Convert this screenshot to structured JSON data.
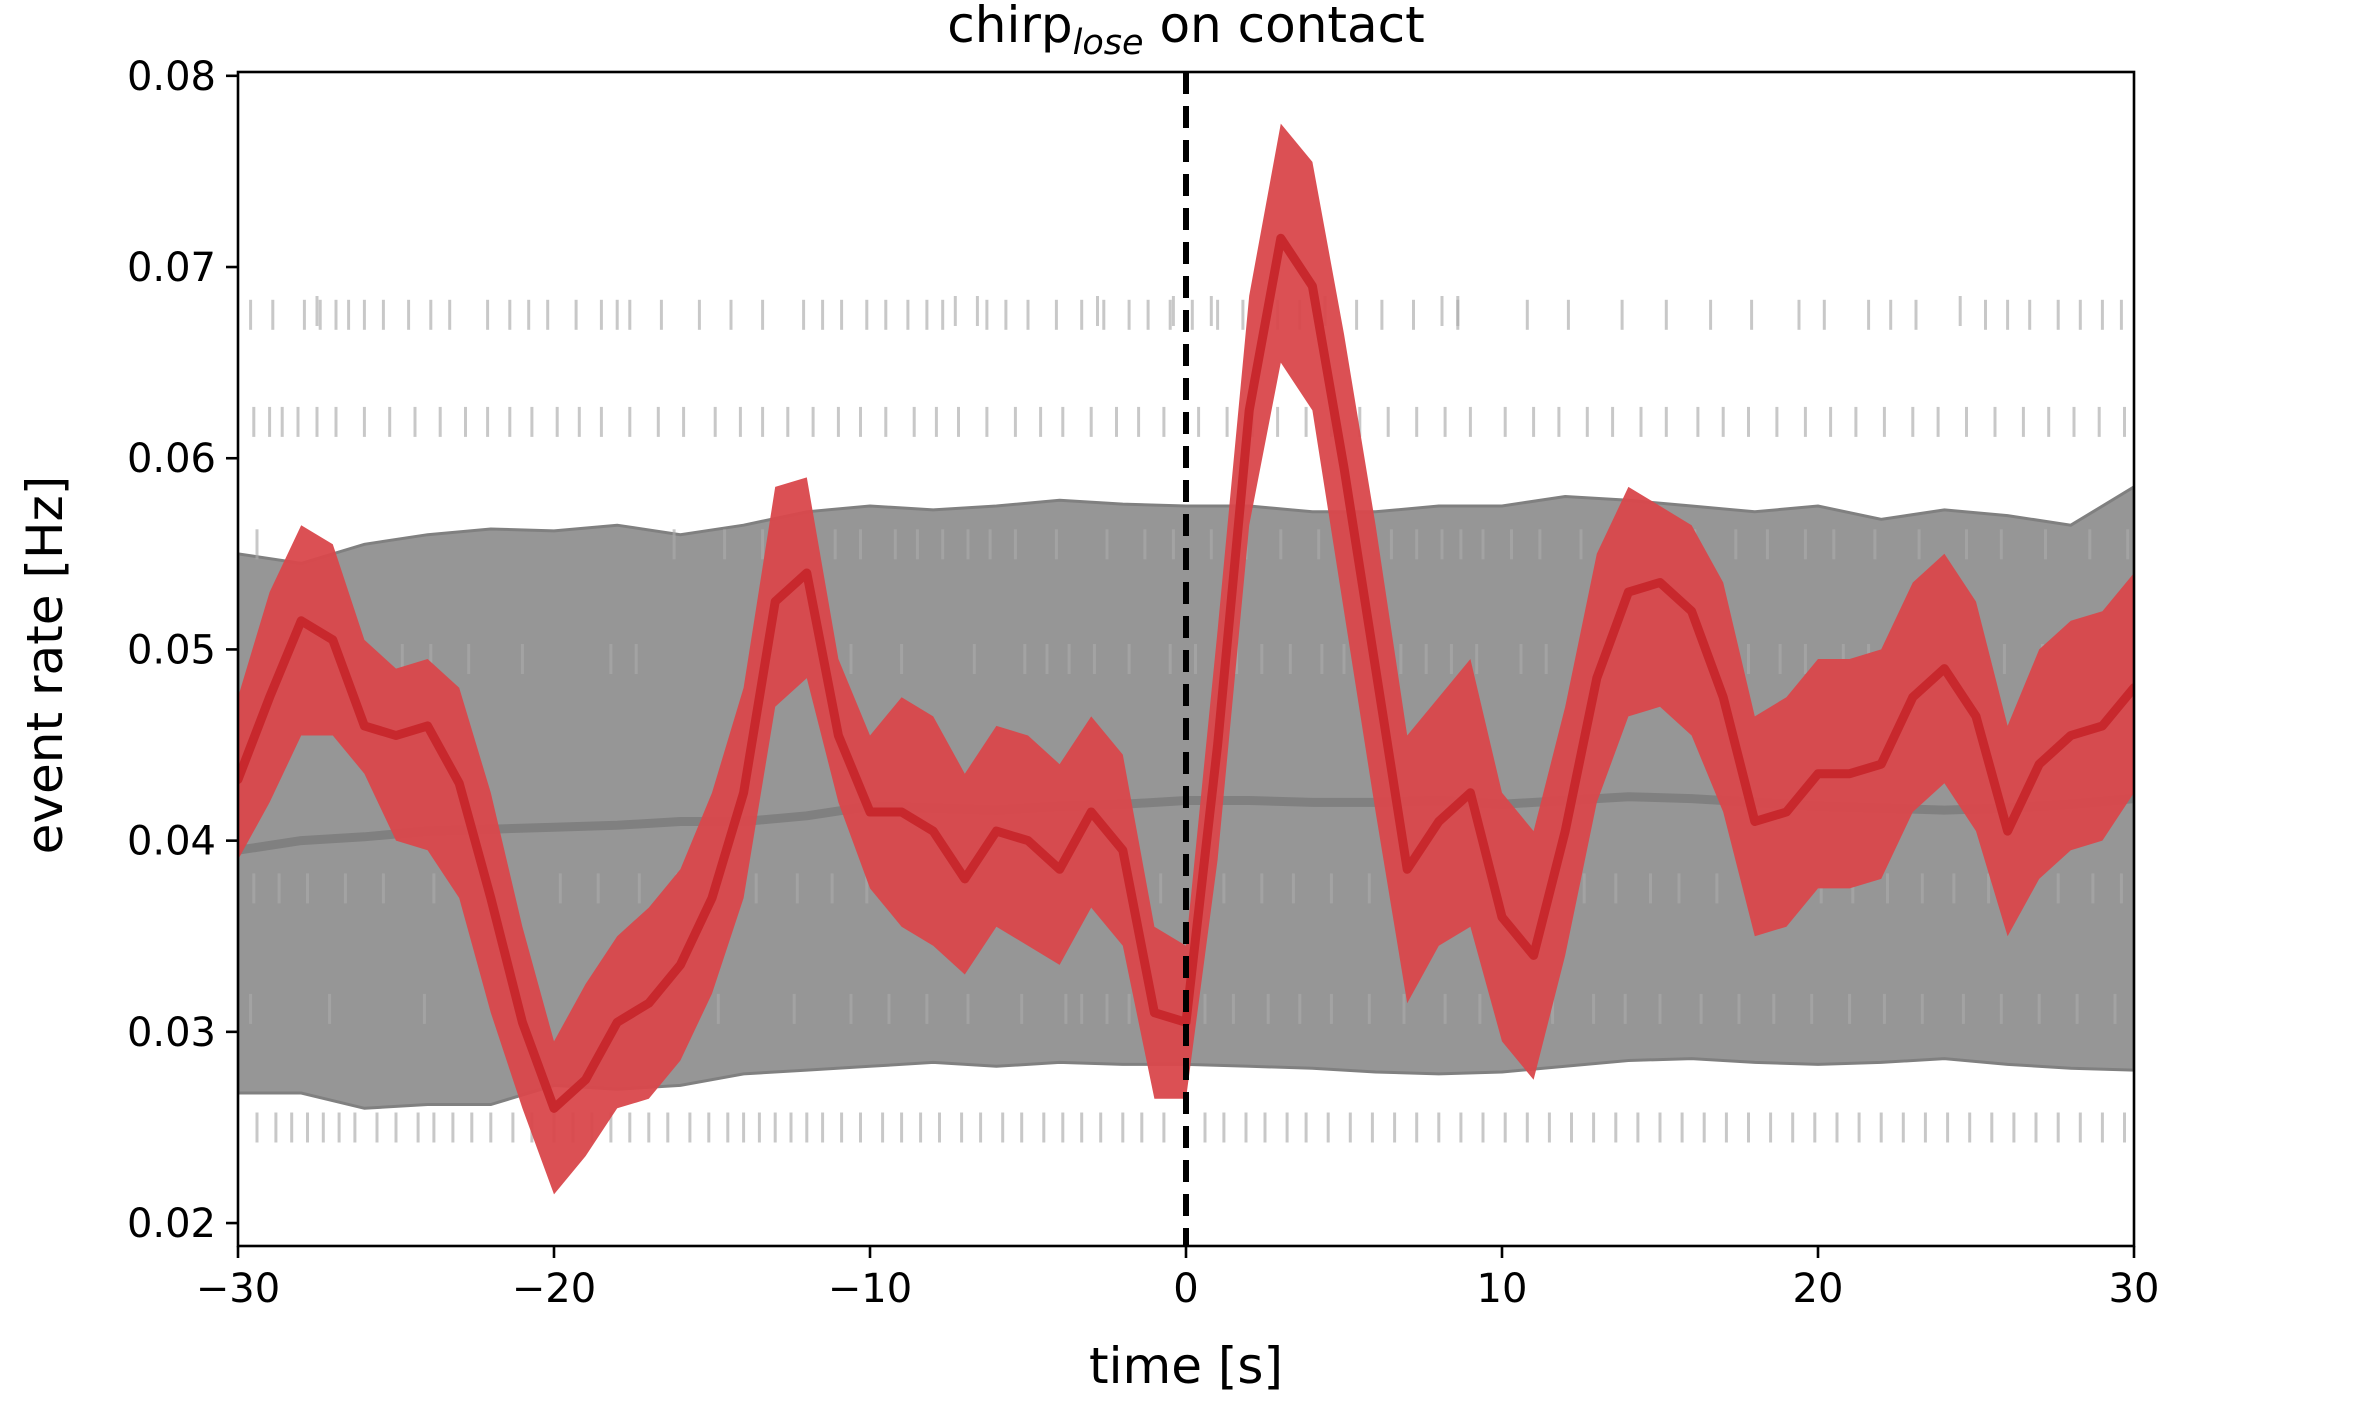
{
  "chart_data": {
    "type": "line",
    "title": {
      "main": "chirp",
      "subscript": "lose",
      "suffix": " on contact"
    },
    "xlabel": "time [s]",
    "ylabel": "event rate [Hz]",
    "xlim": [
      -30,
      30
    ],
    "ylim": [
      0.0188,
      0.0802
    ],
    "xticks": [
      -30,
      -20,
      -10,
      0,
      10,
      20,
      30
    ],
    "xtick_labels": [
      "−30",
      "−20",
      "−10",
      "0",
      "10",
      "20",
      "30"
    ],
    "yticks": [
      0.02,
      0.03,
      0.04,
      0.05,
      0.06,
      0.07,
      0.08
    ],
    "ytick_labels": [
      "0.02",
      "0.03",
      "0.04",
      "0.05",
      "0.06",
      "0.07",
      "0.08"
    ],
    "grid": false,
    "legend": "none",
    "colors": {
      "observed": "#c8282d",
      "observed_band": "#d9474b",
      "null": "#808080",
      "null_band": "#969696",
      "events": "#aaaaaa",
      "vline": "#000000"
    },
    "vline_x": 0,
    "series": [
      {
        "role": "observed",
        "x": [
          -30,
          -29,
          -28,
          -27,
          -26,
          -25,
          -24,
          -23,
          -22,
          -21,
          -20,
          -19,
          -18,
          -17,
          -16,
          -15,
          -14,
          -13,
          -12,
          -11,
          -10,
          -9,
          -8,
          -7,
          -6,
          -5,
          -4,
          -3,
          -2,
          -1,
          0,
          1,
          2,
          3,
          4,
          5,
          6,
          7,
          8,
          9,
          10,
          11,
          12,
          13,
          14,
          15,
          16,
          17,
          18,
          19,
          20,
          21,
          22,
          23,
          24,
          25,
          26,
          27,
          28,
          29,
          30
        ],
        "y": [
          0.0432,
          0.0475,
          0.0515,
          0.0505,
          0.046,
          0.0455,
          0.046,
          0.043,
          0.037,
          0.0305,
          0.026,
          0.0275,
          0.0305,
          0.0315,
          0.0335,
          0.037,
          0.0425,
          0.0525,
          0.054,
          0.0455,
          0.0415,
          0.0415,
          0.0405,
          0.038,
          0.0405,
          0.04,
          0.0385,
          0.0415,
          0.0395,
          0.031,
          0.0305,
          0.045,
          0.0625,
          0.0715,
          0.069,
          0.0595,
          0.049,
          0.0385,
          0.041,
          0.0425,
          0.036,
          0.034,
          0.0405,
          0.0485,
          0.053,
          0.0535,
          0.052,
          0.0475,
          0.041,
          0.0415,
          0.0435,
          0.0435,
          0.044,
          0.0475,
          0.049,
          0.0465,
          0.0405,
          0.044,
          0.0455,
          0.046,
          0.048
        ],
        "lower": [
          0.039,
          0.042,
          0.0455,
          0.0455,
          0.0435,
          0.04,
          0.0395,
          0.037,
          0.031,
          0.026,
          0.0215,
          0.0235,
          0.026,
          0.0265,
          0.0285,
          0.032,
          0.037,
          0.047,
          0.0485,
          0.042,
          0.0375,
          0.0355,
          0.0345,
          0.033,
          0.0355,
          0.0345,
          0.0335,
          0.0365,
          0.0345,
          0.0265,
          0.0265,
          0.039,
          0.0565,
          0.065,
          0.0625,
          0.052,
          0.0415,
          0.0315,
          0.0345,
          0.0355,
          0.0295,
          0.0275,
          0.034,
          0.042,
          0.0465,
          0.047,
          0.0455,
          0.0415,
          0.035,
          0.0355,
          0.0375,
          0.0375,
          0.038,
          0.0415,
          0.043,
          0.0405,
          0.035,
          0.038,
          0.0395,
          0.04,
          0.0425
        ],
        "upper": [
          0.0475,
          0.053,
          0.0565,
          0.0555,
          0.0505,
          0.049,
          0.0495,
          0.048,
          0.0425,
          0.0355,
          0.0295,
          0.0325,
          0.035,
          0.0365,
          0.0385,
          0.0425,
          0.048,
          0.0585,
          0.059,
          0.0495,
          0.0455,
          0.0475,
          0.0465,
          0.0435,
          0.046,
          0.0455,
          0.044,
          0.0465,
          0.0445,
          0.0355,
          0.0345,
          0.051,
          0.0685,
          0.0775,
          0.0755,
          0.0665,
          0.0565,
          0.0455,
          0.0475,
          0.0495,
          0.0425,
          0.0405,
          0.047,
          0.055,
          0.0585,
          0.0575,
          0.0565,
          0.0535,
          0.0465,
          0.0475,
          0.0495,
          0.0495,
          0.05,
          0.0535,
          0.055,
          0.0525,
          0.046,
          0.05,
          0.0515,
          0.052,
          0.054
        ]
      },
      {
        "role": "null",
        "x": [
          -30,
          -28,
          -26,
          -24,
          -22,
          -20,
          -18,
          -16,
          -14,
          -12,
          -10,
          -8,
          -6,
          -4,
          -2,
          0,
          2,
          4,
          6,
          8,
          10,
          12,
          14,
          16,
          18,
          20,
          22,
          24,
          26,
          28,
          30
        ],
        "y": [
          0.0395,
          0.04,
          0.0402,
          0.0405,
          0.0406,
          0.0407,
          0.0408,
          0.041,
          0.041,
          0.0413,
          0.0418,
          0.0417,
          0.0416,
          0.0418,
          0.0419,
          0.0421,
          0.0421,
          0.042,
          0.042,
          0.0421,
          0.0419,
          0.0421,
          0.0423,
          0.0422,
          0.042,
          0.0418,
          0.0417,
          0.0416,
          0.0417,
          0.0419,
          0.0422
        ],
        "lower": [
          0.0268,
          0.0268,
          0.026,
          0.0262,
          0.0262,
          0.0272,
          0.027,
          0.0272,
          0.0278,
          0.028,
          0.0282,
          0.0284,
          0.0282,
          0.0284,
          0.0283,
          0.0283,
          0.0282,
          0.0281,
          0.0279,
          0.0278,
          0.0279,
          0.0282,
          0.0285,
          0.0286,
          0.0284,
          0.0283,
          0.0284,
          0.0286,
          0.0283,
          0.0281,
          0.028
        ],
        "upper": [
          0.055,
          0.0545,
          0.0555,
          0.056,
          0.0563,
          0.0562,
          0.0565,
          0.056,
          0.0565,
          0.0572,
          0.0575,
          0.0573,
          0.0575,
          0.0578,
          0.0576,
          0.0575,
          0.0575,
          0.0572,
          0.0572,
          0.0575,
          0.0575,
          0.058,
          0.0578,
          0.0575,
          0.0572,
          0.0575,
          0.0568,
          0.0573,
          0.057,
          0.0565,
          0.0585
        ]
      }
    ],
    "event_rows": [
      {
        "y": 0.0677,
        "times": [
          -27.5,
          -7.3,
          -6.6,
          -2.8,
          -0.4,
          0.8,
          4.4,
          8.1,
          8.6,
          24.5
        ]
      },
      {
        "y": 0.0675,
        "times": [
          -29.6,
          -28.9,
          -27.9,
          -27.4,
          -26.9,
          -26.5,
          -26.0,
          -25.4,
          -24.6,
          -23.9,
          -23.3,
          -22.1,
          -21.4,
          -20.8,
          -20.2,
          -19.3,
          -18.5,
          -18.0,
          -17.6,
          -16.6,
          -15.4,
          -14.4,
          -13.4,
          -12.1,
          -11.5,
          -10.9,
          -10.1,
          -9.5,
          -8.8,
          -8.2,
          -7.7,
          -6.3,
          -5.7,
          -5.0,
          -4.1,
          -3.3,
          -2.6,
          -1.8,
          -1.2,
          -0.5,
          0.2,
          1.0,
          1.8,
          2.9,
          3.6,
          5.4,
          6.2,
          7.2,
          8.6,
          10.8,
          12.1,
          13.8,
          15.2,
          16.6,
          17.9,
          19.4,
          20.2,
          21.6,
          22.3,
          23.1,
          25.3,
          26.0,
          26.7,
          27.6,
          28.3,
          29.0,
          29.6
        ]
      },
      {
        "y": 0.0619,
        "times": [
          -29.5,
          -29.0,
          -28.6,
          -28.1,
          -27.5,
          -26.9,
          -26.0,
          -25.2,
          -24.4,
          -23.6,
          -22.8,
          -22.1,
          -21.4,
          -20.7,
          -19.9,
          -19.2,
          -18.5,
          -17.6,
          -16.7,
          -15.9,
          -14.9,
          -14.1,
          -13.4,
          -12.6,
          -11.8,
          -11.0,
          -10.3,
          -9.5,
          -8.6,
          -7.9,
          -7.2,
          -6.3,
          -5.4,
          -4.6,
          -3.9,
          -3.0,
          -2.2,
          -1.5,
          -0.7,
          0.4,
          1.3,
          2.1,
          2.9,
          3.8,
          4.6,
          5.5,
          6.4,
          7.3,
          8.2,
          9.0,
          10.1,
          11.0,
          11.8,
          12.7,
          13.5,
          14.4,
          15.2,
          16.2,
          17.0,
          17.8,
          18.7,
          19.6,
          20.4,
          21.2,
          22.1,
          23.0,
          23.8,
          24.7,
          25.6,
          26.5,
          27.3,
          28.1,
          28.9,
          29.7
        ]
      },
      {
        "y": 0.0555,
        "times": [
          -29.4,
          -16.2,
          -14.6,
          -13.4,
          -11.1,
          -10.3,
          -9.2,
          -8.5,
          -7.7,
          -6.9,
          -6.2,
          -5.4,
          -4.1,
          -2.5,
          -1.3,
          -0.4,
          0.8,
          1.9,
          3.0,
          4.2,
          5.6,
          6.5,
          7.3,
          8.1,
          8.7,
          9.4,
          10.3,
          11.2,
          12.5,
          13.7,
          15.2,
          16.1,
          17.4,
          18.4,
          19.6,
          20.5,
          21.8,
          23.2,
          24.7,
          25.8,
          27.2,
          28.6,
          29.8
        ]
      },
      {
        "y": 0.0495,
        "times": [
          -27.6,
          -26.8,
          -24.8,
          -23.9,
          -22.7,
          -21.0,
          -18.2,
          -17.4,
          -12.6,
          -11.4,
          -10.6,
          -9.0,
          -6.7,
          -5.1,
          -4.4,
          -3.7,
          -2.9,
          -1.8,
          -0.5,
          0.3,
          1.6,
          2.4,
          3.3,
          4.3,
          5.0,
          5.9,
          6.8,
          7.6,
          8.4,
          9.2,
          10.6,
          11.4,
          12.9,
          13.7,
          14.8,
          15.5,
          16.6,
          17.8,
          18.8,
          19.6,
          20.8,
          21.6,
          22.6,
          23.7,
          24.8,
          25.9,
          27.1,
          28.3,
          29.5
        ]
      },
      {
        "y": 0.0375,
        "times": [
          -29.5,
          -28.7,
          -27.8,
          -26.6,
          -25.4,
          -23.8,
          -22.5,
          -21.5,
          -19.8,
          -18.6,
          -17.3,
          -16.1,
          -14.8,
          -13.6,
          -12.3,
          -11.2,
          -10.1,
          -9.0,
          -8.2,
          -7.3,
          -6.1,
          -5.0,
          -3.8,
          -2.7,
          -1.6,
          -0.8,
          0.4,
          1.2,
          2.4,
          3.4,
          4.6,
          5.8,
          7.2,
          8.3,
          9.4,
          10.4,
          11.5,
          12.6,
          13.6,
          14.7,
          15.6,
          16.8,
          17.9,
          19.0,
          20.1,
          21.1,
          22.2,
          23.3,
          24.3,
          25.4,
          26.5,
          27.6,
          28.7,
          29.6
        ]
      },
      {
        "y": 0.0312,
        "times": [
          -29.6,
          -27.1,
          -24.1,
          -21.3,
          -18.9,
          -17.0,
          -14.8,
          -12.4,
          -10.6,
          -9.4,
          -8.2,
          -6.9,
          -5.2,
          -3.8,
          -3.3,
          -2.5,
          -1.8,
          -0.6,
          0.6,
          1.5,
          2.6,
          3.6,
          4.6,
          5.8,
          6.9,
          8.2,
          9.3,
          10.4,
          11.6,
          12.9,
          13.9,
          15.0,
          16.3,
          17.5,
          18.6,
          19.8,
          21.0,
          22.1,
          23.3,
          24.6,
          25.8,
          27.0,
          28.2,
          29.4
        ]
      },
      {
        "y": 0.025,
        "times": [
          -29.4,
          -28.8,
          -28.3,
          -27.8,
          -27.3,
          -26.8,
          -26.3,
          -25.6,
          -25.0,
          -24.3,
          -23.8,
          -23.2,
          -22.6,
          -22.0,
          -21.3,
          -20.7,
          -20.0,
          -19.4,
          -18.8,
          -18.2,
          -17.6,
          -17.0,
          -16.4,
          -15.7,
          -15.1,
          -14.5,
          -14.0,
          -13.5,
          -13.0,
          -12.5,
          -12.0,
          -11.5,
          -10.9,
          -10.3,
          -9.6,
          -9.0,
          -8.4,
          -7.8,
          -7.1,
          -6.5,
          -5.8,
          -5.2,
          -4.5,
          -3.9,
          -3.3,
          -2.7,
          -2.0,
          -1.4,
          -0.7,
          0.6,
          1.2,
          1.9,
          2.5,
          3.2,
          3.8,
          4.5,
          5.2,
          5.9,
          6.6,
          7.3,
          8.0,
          8.7,
          9.4,
          10.1,
          10.8,
          11.5,
          12.2,
          12.9,
          13.6,
          14.3,
          15.0,
          15.7,
          16.4,
          17.1,
          17.8,
          18.5,
          19.2,
          19.9,
          20.6,
          21.3,
          22.0,
          22.7,
          23.4,
          24.1,
          24.8,
          25.5,
          26.2,
          26.9,
          27.6,
          28.3,
          29.0,
          29.7
        ]
      }
    ]
  }
}
